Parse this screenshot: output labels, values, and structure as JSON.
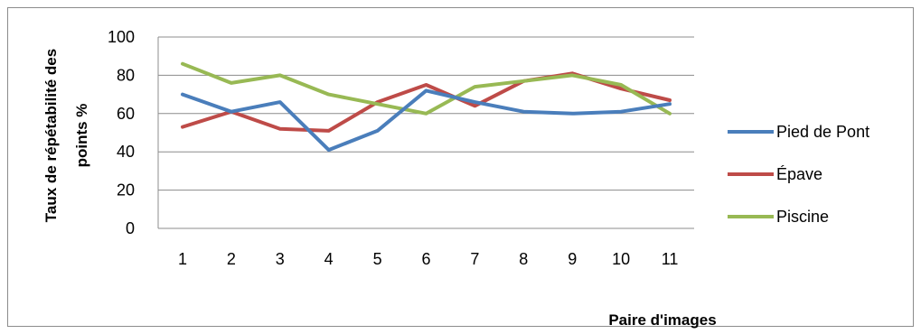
{
  "chart_data": {
    "type": "line",
    "xlabel": "Paire d'images",
    "ylabel_lines": [
      "Taux de répétabilité des",
      "points %"
    ],
    "ylim": [
      0,
      100
    ],
    "y_ticks": [
      0,
      20,
      40,
      60,
      80,
      100
    ],
    "categories": [
      "1",
      "2",
      "3",
      "4",
      "5",
      "6",
      "7",
      "8",
      "9",
      "10",
      "11"
    ],
    "grid": true,
    "legend_position": "right",
    "series": [
      {
        "name": "Pied de Pont",
        "color": "#4a7ebb",
        "values": [
          70,
          61,
          66,
          41,
          51,
          72,
          66,
          61,
          60,
          61,
          65
        ]
      },
      {
        "name": "Épave",
        "color": "#be4b48",
        "values": [
          53,
          61,
          52,
          51,
          66,
          75,
          64,
          77,
          81,
          73,
          67
        ]
      },
      {
        "name": "Piscine",
        "color": "#98b954",
        "values": [
          86,
          76,
          80,
          70,
          65,
          60,
          74,
          77,
          80,
          75,
          60
        ]
      }
    ]
  }
}
